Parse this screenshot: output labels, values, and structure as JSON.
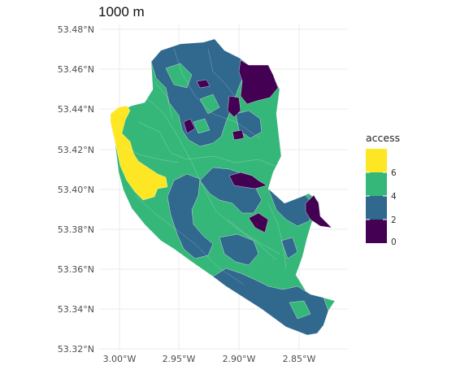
{
  "title": "1000 m",
  "legend": {
    "title": "access",
    "labels": [
      "6",
      "4",
      "2",
      "0"
    ]
  },
  "axes": {
    "y_ticks": [
      "53.48°N",
      "53.46°N",
      "53.44°N",
      "53.42°N",
      "53.40°N",
      "53.38°N",
      "53.36°N",
      "53.34°N",
      "53.32°N"
    ],
    "x_ticks": [
      "3.00°W",
      "2.95°W",
      "2.90°W",
      "2.85°W"
    ]
  },
  "colors": {
    "access_0": "#440154",
    "access_2": "#31688e",
    "access_4": "#35b779",
    "access_6": "#fde725",
    "grid": "#ebebeb"
  },
  "map": {
    "type": "choropleth",
    "variable": "access",
    "scale": "viridis",
    "range": [
      0,
      8
    ],
    "lat_range": [
      53.32,
      53.48
    ],
    "lon_range": [
      -3.0,
      -2.85
    ],
    "grid": true,
    "legend_position": "right"
  }
}
